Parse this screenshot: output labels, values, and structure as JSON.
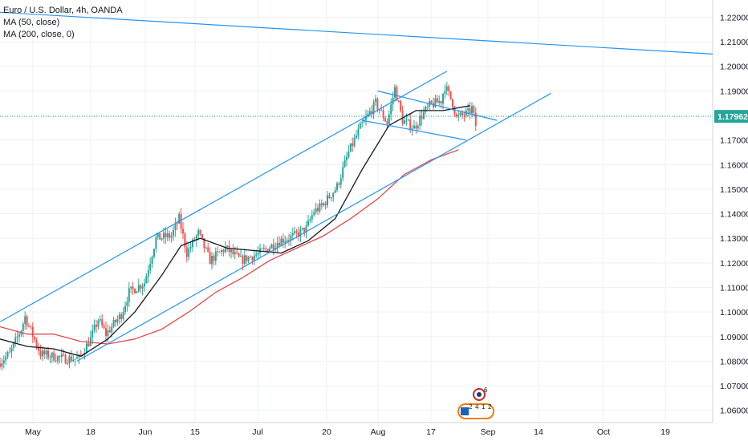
{
  "header": {
    "title": "Euro / U.S. Dollar, 4h, OANDA",
    "indicators": [
      "MA (50, close)",
      "MA (200, close, 0)"
    ]
  },
  "colors": {
    "up": "#26a69a",
    "down": "#ef5350",
    "ma50": "#131722",
    "ma200": "#e5484d",
    "trendline": "#2196f3",
    "price_line": "#26a69a",
    "grid": "#eef1f5",
    "axis_text": "#131722"
  },
  "chart_data": {
    "type": "candlestick",
    "symbol": "Euro / U.S. Dollar",
    "timeframe": "4h",
    "source": "OANDA",
    "x_axis": {
      "labels": [
        "May",
        "18",
        "Jun",
        "15",
        "Jul",
        "20",
        "Aug",
        "17",
        "Sep",
        "14",
        "Oct",
        "19"
      ],
      "range": [
        "2020-04-24",
        "2020-10-26"
      ]
    },
    "y_axis": {
      "ticks": [
        "1.06000",
        "1.07000",
        "1.08000",
        "1.09000",
        "1.10000",
        "1.11000",
        "1.12000",
        "1.13000",
        "1.14000",
        "1.15000",
        "1.16000",
        "1.17000",
        "1.18000",
        "1.19000",
        "1.20000",
        "1.21000",
        "1.22000"
      ],
      "range": [
        1.055,
        1.227
      ]
    },
    "last_price": "1.17962",
    "price_path": [
      [
        "2020-04-24",
        1.079
      ],
      [
        "2020-04-27",
        1.083
      ],
      [
        "2020-04-30",
        1.093
      ],
      [
        "2020-05-01",
        1.098
      ],
      [
        "2020-05-05",
        1.083
      ],
      [
        "2020-05-11",
        1.081
      ],
      [
        "2020-05-15",
        1.081
      ],
      [
        "2020-05-18",
        1.089
      ],
      [
        "2020-05-20",
        1.097
      ],
      [
        "2020-05-22",
        1.091
      ],
      [
        "2020-05-26",
        1.099
      ],
      [
        "2020-05-28",
        1.108
      ],
      [
        "2020-06-01",
        1.112
      ],
      [
        "2020-06-04",
        1.13
      ],
      [
        "2020-06-08",
        1.131
      ],
      [
        "2020-06-10",
        1.138
      ],
      [
        "2020-06-12",
        1.124
      ],
      [
        "2020-06-15",
        1.132
      ],
      [
        "2020-06-18",
        1.121
      ],
      [
        "2020-06-22",
        1.126
      ],
      [
        "2020-06-26",
        1.121
      ],
      [
        "2020-07-01",
        1.124
      ],
      [
        "2020-07-06",
        1.129
      ],
      [
        "2020-07-10",
        1.131
      ],
      [
        "2020-07-13",
        1.134
      ],
      [
        "2020-07-15",
        1.141
      ],
      [
        "2020-07-17",
        1.143
      ],
      [
        "2020-07-21",
        1.151
      ],
      [
        "2020-07-24",
        1.165
      ],
      [
        "2020-07-27",
        1.175
      ],
      [
        "2020-07-31",
        1.185
      ],
      [
        "2020-08-03",
        1.177
      ],
      [
        "2020-08-05",
        1.191
      ],
      [
        "2020-08-07",
        1.178
      ],
      [
        "2020-08-10",
        1.175
      ],
      [
        "2020-08-12",
        1.18
      ],
      [
        "2020-08-14",
        1.184
      ],
      [
        "2020-08-17",
        1.186
      ],
      [
        "2020-08-18",
        1.192
      ],
      [
        "2020-08-20",
        1.185
      ],
      [
        "2020-08-21",
        1.179
      ],
      [
        "2020-08-24",
        1.181
      ],
      [
        "2020-08-25",
        1.183
      ],
      [
        "2020-08-26",
        1.176
      ]
    ],
    "ma50": [
      [
        "2020-04-24",
        1.089
      ],
      [
        "2020-05-01",
        1.086
      ],
      [
        "2020-05-08",
        1.085
      ],
      [
        "2020-05-15",
        1.082
      ],
      [
        "2020-05-22",
        1.089
      ],
      [
        "2020-05-29",
        1.1
      ],
      [
        "2020-06-05",
        1.115
      ],
      [
        "2020-06-10",
        1.127
      ],
      [
        "2020-06-15",
        1.13
      ],
      [
        "2020-06-22",
        1.126
      ],
      [
        "2020-06-29",
        1.125
      ],
      [
        "2020-07-06",
        1.124
      ],
      [
        "2020-07-13",
        1.129
      ],
      [
        "2020-07-20",
        1.138
      ],
      [
        "2020-07-27",
        1.158
      ],
      [
        "2020-08-03",
        1.176
      ],
      [
        "2020-08-10",
        1.182
      ],
      [
        "2020-08-17",
        1.182
      ],
      [
        "2020-08-24",
        1.184
      ]
    ],
    "ma200": [
      [
        "2020-04-24",
        1.094
      ],
      [
        "2020-05-01",
        1.091
      ],
      [
        "2020-05-08",
        1.091
      ],
      [
        "2020-05-15",
        1.088
      ],
      [
        "2020-05-22",
        1.087
      ],
      [
        "2020-05-29",
        1.089
      ],
      [
        "2020-06-05",
        1.093
      ],
      [
        "2020-06-12",
        1.1
      ],
      [
        "2020-06-19",
        1.108
      ],
      [
        "2020-06-26",
        1.114
      ],
      [
        "2020-07-03",
        1.121
      ],
      [
        "2020-07-10",
        1.126
      ],
      [
        "2020-07-17",
        1.131
      ],
      [
        "2020-07-24",
        1.138
      ],
      [
        "2020-07-31",
        1.146
      ],
      [
        "2020-08-07",
        1.156
      ],
      [
        "2020-08-14",
        1.162
      ],
      [
        "2020-08-21",
        1.166
      ]
    ],
    "drawings": [
      {
        "name": "long-resistance-line",
        "points": [
          [
            "2020-04-24",
            1.222
          ],
          [
            "2020-10-26",
            1.205
          ]
        ]
      },
      {
        "name": "channel-upper-line",
        "points": [
          [
            "2020-04-24",
            1.096
          ],
          [
            "2020-08-18",
            1.198
          ]
        ]
      },
      {
        "name": "channel-lower-line",
        "points": [
          [
            "2020-05-14",
            1.08
          ],
          [
            "2020-09-14",
            1.189
          ]
        ]
      },
      {
        "name": "flag-upper-line",
        "points": [
          [
            "2020-07-31",
            1.19
          ],
          [
            "2020-08-31",
            1.178
          ]
        ]
      },
      {
        "name": "flag-lower-line",
        "points": [
          [
            "2020-07-27",
            1.178
          ],
          [
            "2020-08-23",
            1.17
          ]
        ]
      }
    ],
    "events": [
      "6",
      "2",
      "4",
      "1",
      "2"
    ]
  }
}
